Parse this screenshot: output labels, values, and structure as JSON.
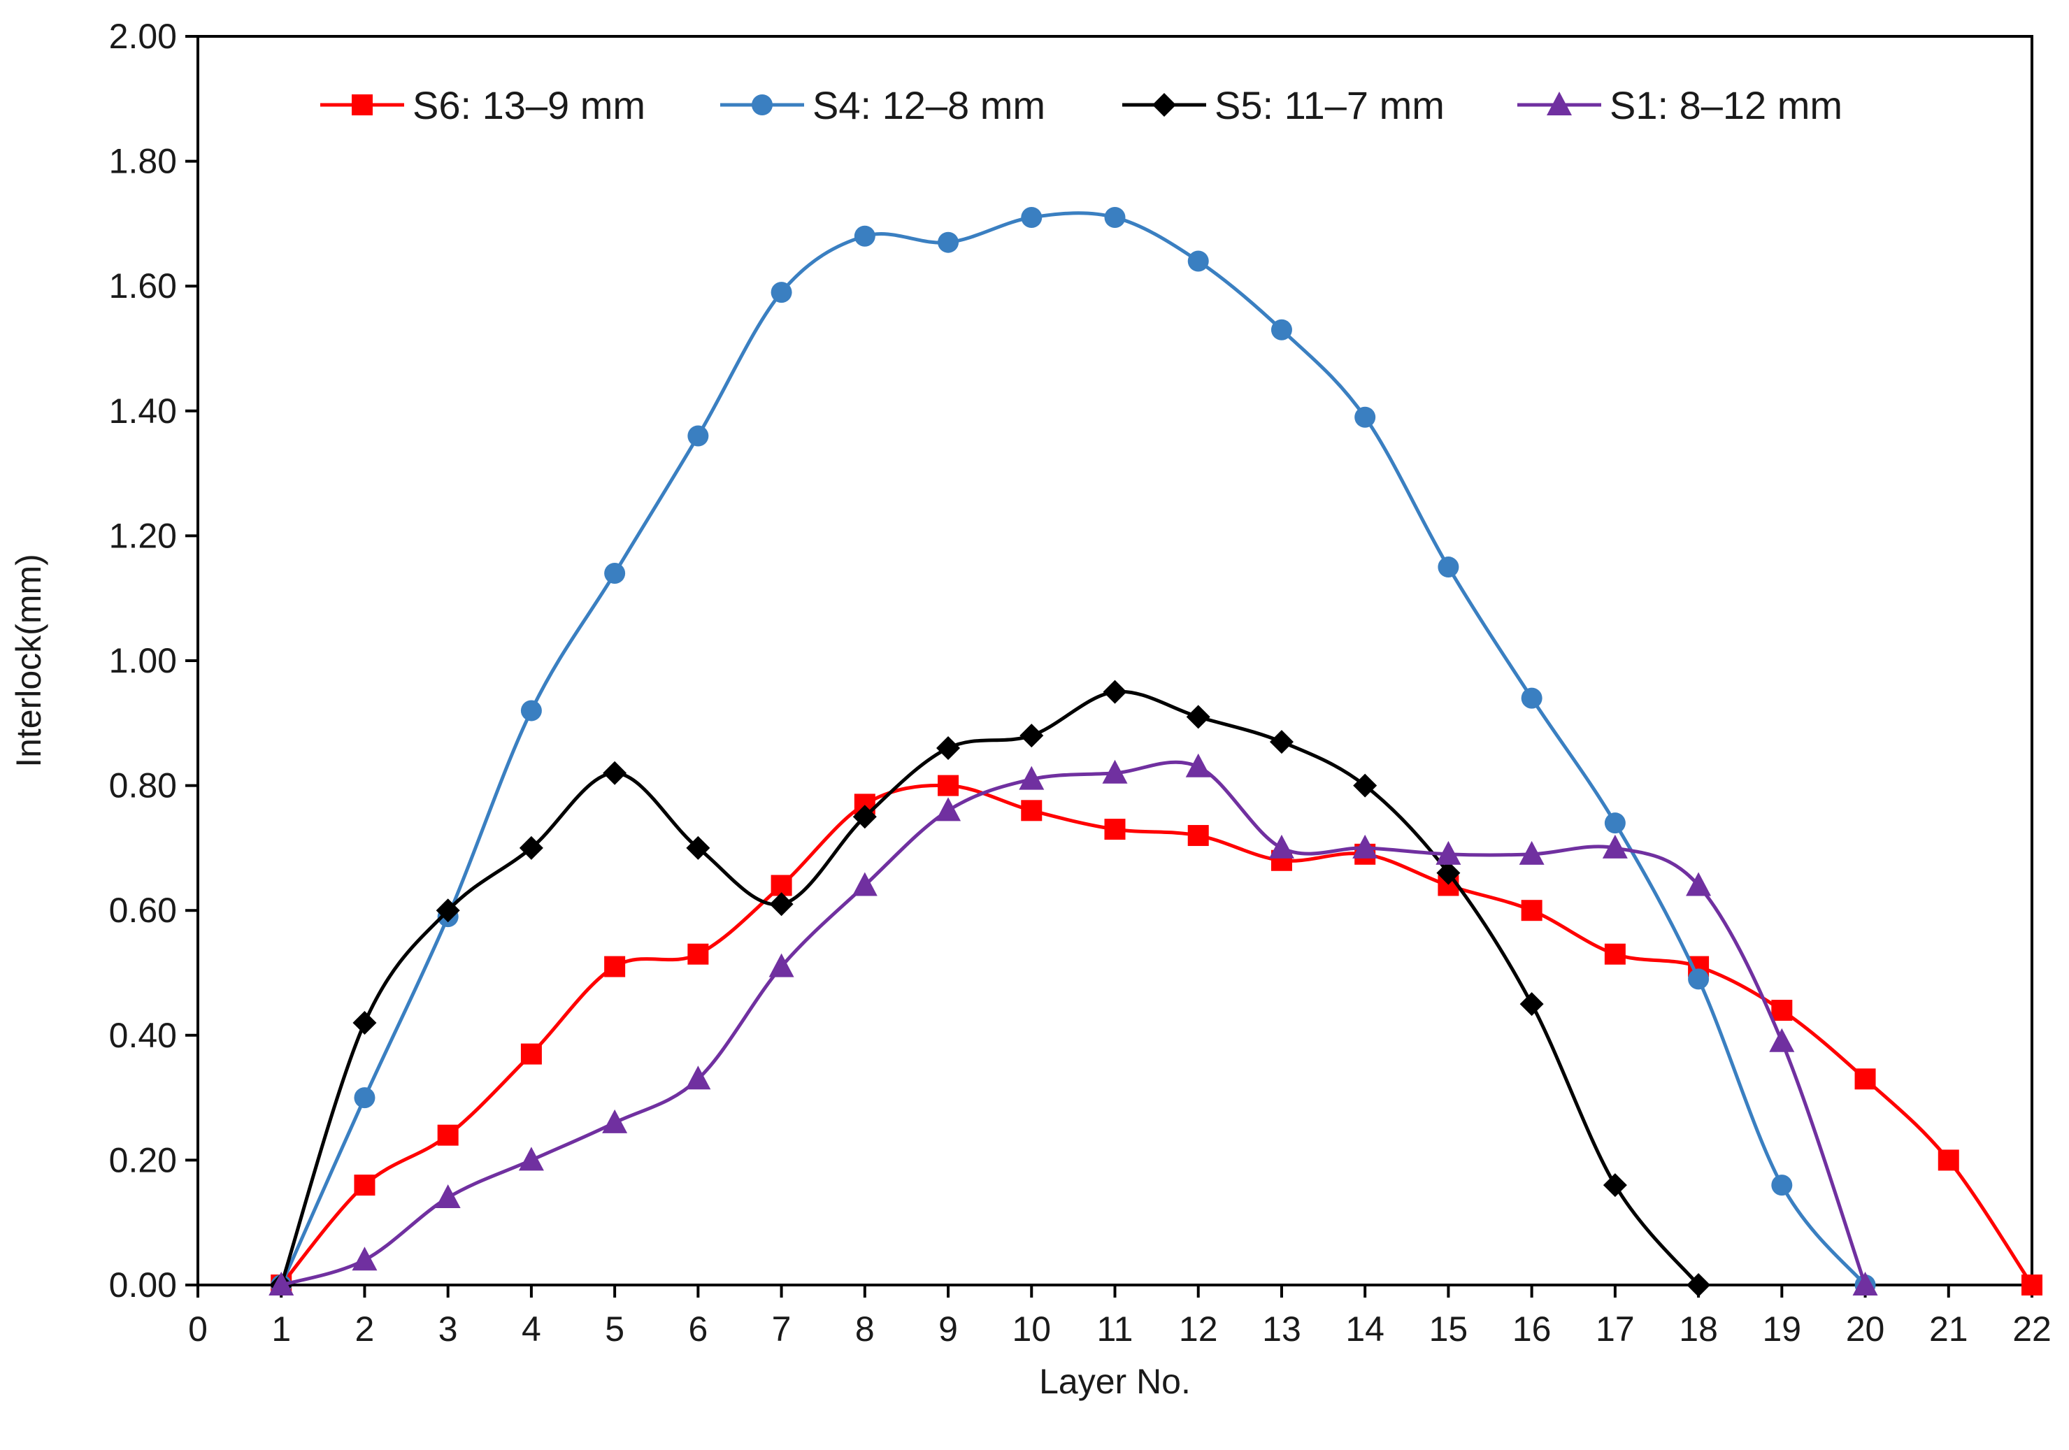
{
  "chart_data": {
    "type": "line",
    "title": "",
    "xlabel": "Layer No.",
    "ylabel": "Interlock(mm)",
    "xlim": [
      0,
      22
    ],
    "ylim": [
      0,
      2
    ],
    "x_ticks": [
      0,
      1,
      2,
      3,
      4,
      5,
      6,
      7,
      8,
      9,
      10,
      11,
      12,
      13,
      14,
      15,
      16,
      17,
      18,
      19,
      20,
      21,
      22
    ],
    "x_tick_labels": [
      "0",
      "1",
      "2",
      "3",
      "4",
      "5",
      "6",
      "7",
      "8",
      "9",
      "10",
      "11",
      "12",
      "13",
      "14",
      "15",
      "16",
      "17",
      "18",
      "19",
      "20",
      "21",
      "22"
    ],
    "y_ticks": [
      0,
      0.2,
      0.4,
      0.6,
      0.8,
      1.0,
      1.2,
      1.4,
      1.6,
      1.8,
      2.0
    ],
    "y_tick_labels": [
      "0.00",
      "0.20",
      "0.40",
      "0.60",
      "0.80",
      "1.00",
      "1.20",
      "1.40",
      "1.60",
      "1.80",
      "2.00"
    ],
    "grid": false,
    "legend_position": "top",
    "series": [
      {
        "name": "S6: 13–9 mm",
        "color": "#ff0000",
        "marker": "square",
        "x": [
          1,
          2,
          3,
          4,
          5,
          6,
          7,
          8,
          9,
          10,
          11,
          12,
          13,
          14,
          15,
          16,
          17,
          18,
          19,
          20,
          21,
          22
        ],
        "values": [
          0.0,
          0.16,
          0.24,
          0.37,
          0.51,
          0.53,
          0.64,
          0.77,
          0.8,
          0.76,
          0.73,
          0.72,
          0.68,
          0.69,
          0.64,
          0.6,
          0.53,
          0.51,
          0.44,
          0.33,
          0.2,
          0.0
        ]
      },
      {
        "name": "S4: 12–8 mm",
        "color": "#3a7fc1",
        "marker": "circle",
        "x": [
          1,
          2,
          3,
          4,
          5,
          6,
          7,
          8,
          9,
          10,
          11,
          12,
          13,
          14,
          15,
          16,
          17,
          18,
          19,
          20
        ],
        "values": [
          0.0,
          0.3,
          0.59,
          0.92,
          1.14,
          1.36,
          1.59,
          1.68,
          1.67,
          1.71,
          1.71,
          1.64,
          1.53,
          1.39,
          1.15,
          0.94,
          0.74,
          0.49,
          0.16,
          0.0
        ]
      },
      {
        "name": "S5: 11–7 mm",
        "color": "#000000",
        "marker": "diamond",
        "x": [
          1,
          2,
          3,
          4,
          5,
          6,
          7,
          8,
          9,
          10,
          11,
          12,
          13,
          14,
          15,
          16,
          17,
          18
        ],
        "values": [
          0.0,
          0.42,
          0.6,
          0.7,
          0.82,
          0.7,
          0.61,
          0.75,
          0.86,
          0.88,
          0.95,
          0.91,
          0.87,
          0.8,
          0.66,
          0.45,
          0.16,
          0.0
        ]
      },
      {
        "name": "S1: 8–12 mm",
        "color": "#7030a0",
        "marker": "triangle",
        "x": [
          1,
          2,
          3,
          4,
          5,
          6,
          7,
          8,
          9,
          10,
          11,
          12,
          13,
          14,
          15,
          16,
          17,
          18,
          19,
          20
        ],
        "values": [
          0.0,
          0.04,
          0.14,
          0.2,
          0.26,
          0.33,
          0.51,
          0.64,
          0.76,
          0.81,
          0.82,
          0.83,
          0.7,
          0.7,
          0.69,
          0.69,
          0.7,
          0.64,
          0.39,
          0.0
        ]
      }
    ]
  }
}
